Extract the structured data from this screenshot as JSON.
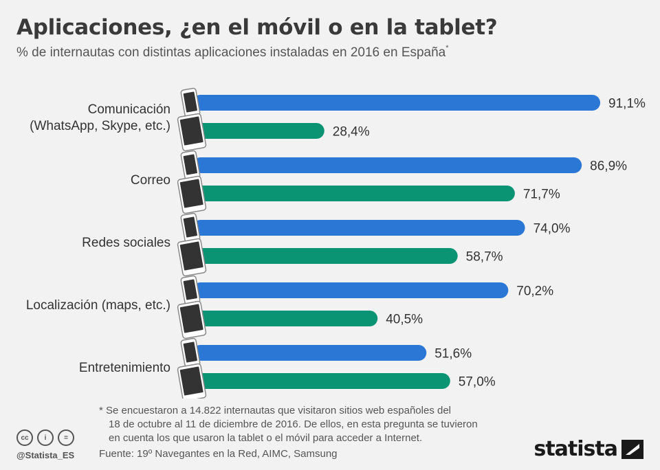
{
  "header": {
    "title": "Aplicaciones, ¿en el móvil o en la tablet?",
    "subtitle": "% de internautas con distintas aplicaciones instaladas en 2016 en España",
    "subtitle_mark": "*"
  },
  "chart_data": {
    "type": "bar",
    "orientation": "horizontal",
    "categories": [
      [
        "Comunicación",
        "(WhatsApp, Skype, etc.)"
      ],
      [
        "Correo"
      ],
      [
        "Redes sociales"
      ],
      [
        "Localización (maps, etc.)"
      ],
      [
        "Entretenimiento"
      ]
    ],
    "series": [
      {
        "icon": "smartphone-icon",
        "color": "#2a77d6",
        "values": [
          91.1,
          86.9,
          74.0,
          70.2,
          51.6
        ],
        "labels": [
          "91,1%",
          "86,9%",
          "74,0%",
          "70,2%",
          "51,6%"
        ]
      },
      {
        "icon": "tablet-icon",
        "color": "#0a9473",
        "values": [
          28.4,
          71.7,
          58.7,
          40.5,
          57.0
        ],
        "labels": [
          "28,4%",
          "71,7%",
          "58,7%",
          "40,5%",
          "57,0%"
        ]
      }
    ],
    "xlim": [
      0,
      100
    ],
    "grid": false
  },
  "footnote": {
    "line1": "* Se encuestaron a 14.822 internautas que visitaron sitios web españoles del",
    "line2": "18 de octubre al 11 de diciembre de 2016.  De ellos, en esta pregunta se tuvieron",
    "line3": "en cuenta los que usaron la tablet o el móvil para acceder a Internet."
  },
  "source": "Fuente: 19º Navegantes en la Red, AIMC, Samsung",
  "license": {
    "cc": "cc",
    "by": "i",
    "nd": "="
  },
  "handle": "@Statista_ES",
  "logo": "statista"
}
